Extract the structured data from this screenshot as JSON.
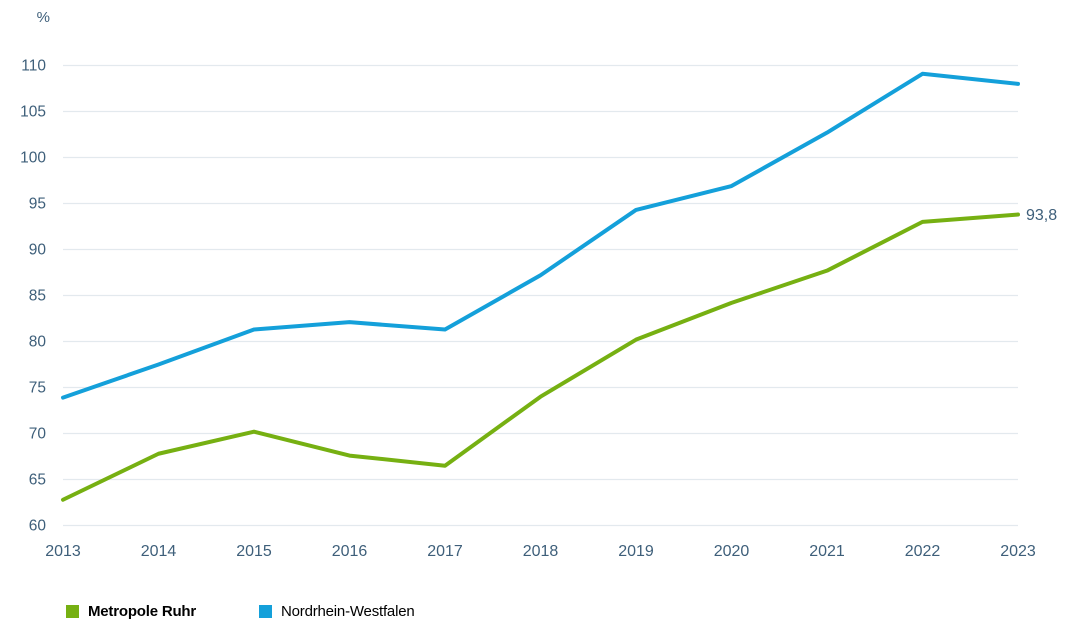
{
  "chart_data": {
    "type": "line",
    "title": "",
    "unit_label": "%",
    "x": [
      2013,
      2014,
      2015,
      2016,
      2017,
      2018,
      2019,
      2020,
      2021,
      2022,
      2023
    ],
    "series": [
      {
        "name": "Metropole Ruhr",
        "color": "#76b012",
        "values": [
          62.8,
          67.8,
          70.2,
          67.6,
          66.5,
          74.0,
          80.2,
          84.2,
          87.7,
          93.0,
          93.8
        ],
        "legend_bold": true
      },
      {
        "name": "Nordrhein-Westfalen",
        "color": "#14a0da",
        "values": [
          73.9,
          77.5,
          81.3,
          82.1,
          81.3,
          87.2,
          94.3,
          96.9,
          102.7,
          109.1,
          108.0
        ],
        "legend_bold": false
      }
    ],
    "end_label": "93,8",
    "end_label_series_index": 0,
    "ylim": [
      60,
      110
    ],
    "ytick_step": 5,
    "yticks": [
      60,
      65,
      70,
      75,
      80,
      85,
      90,
      95,
      100,
      105,
      110
    ],
    "grid": true,
    "legend_position": "bottom"
  },
  "colors": {
    "grid_line": "#e3e9ee",
    "axis_text": "#3e5f7a",
    "legend_text": "#1c4468",
    "background": "#ffffff"
  }
}
